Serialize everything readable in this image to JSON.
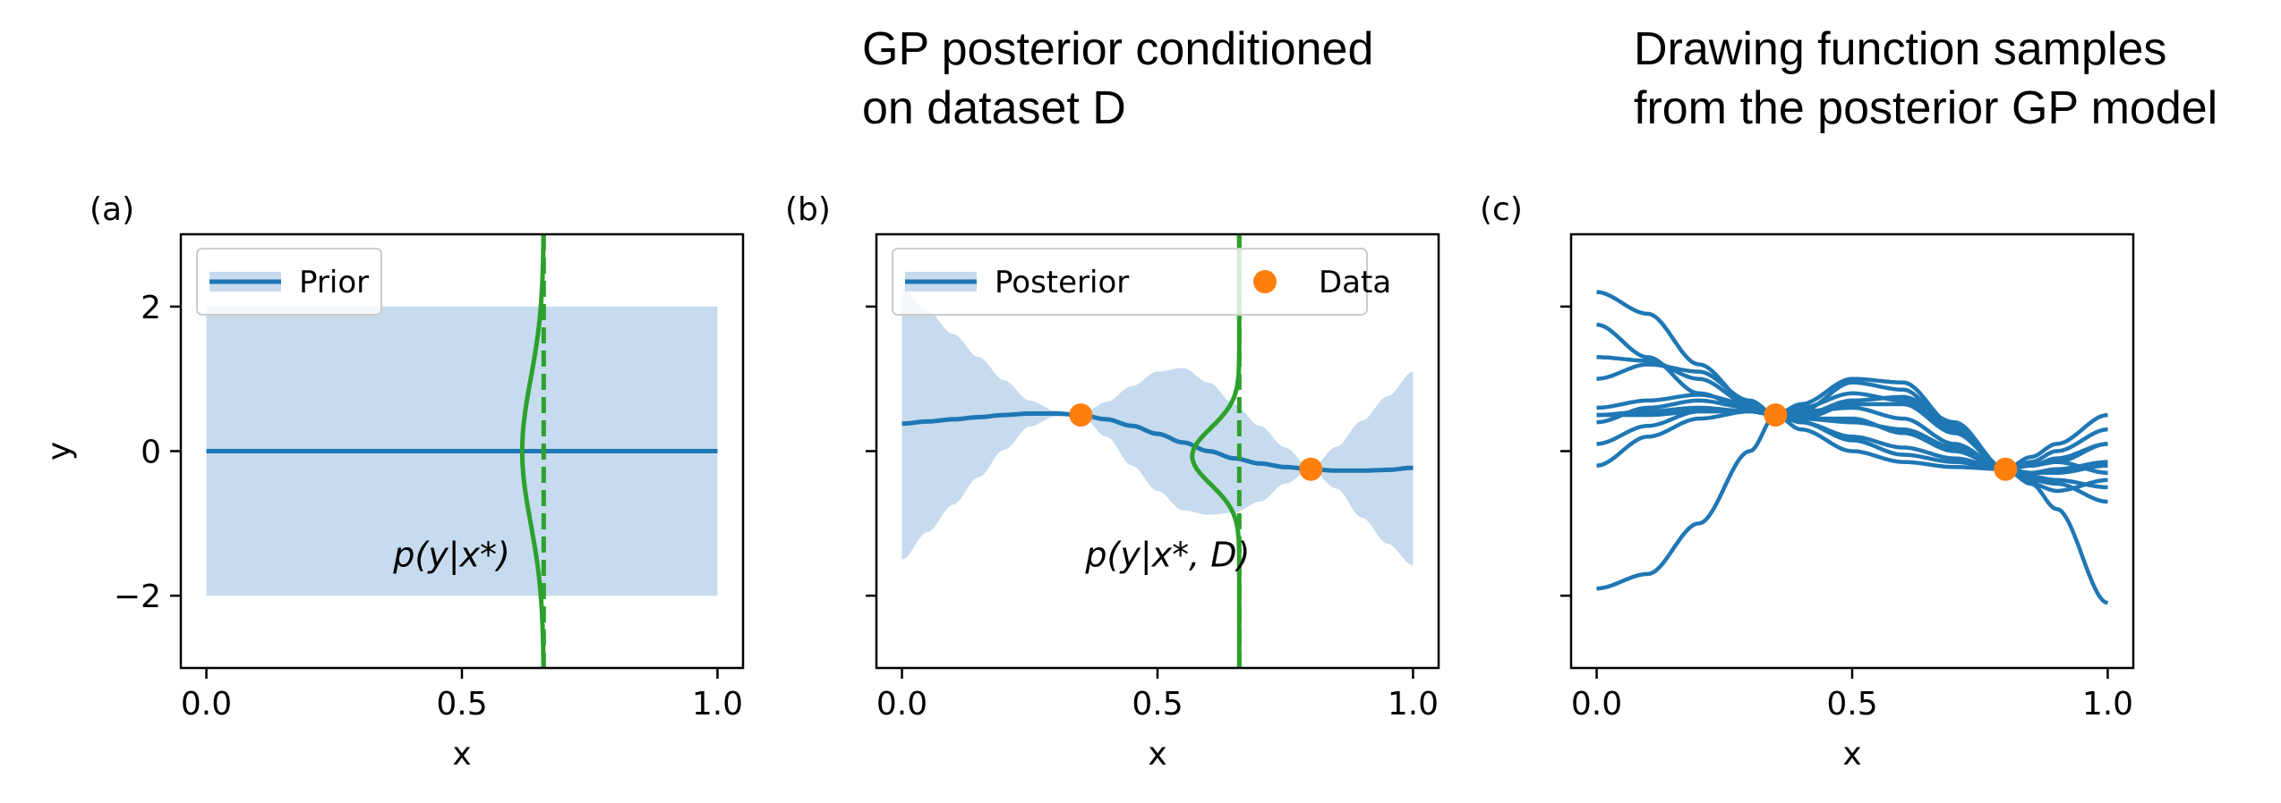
{
  "headings": {
    "panel_b": "GP posterior conditioned\non dataset D",
    "panel_c": "Drawing function samples\nfrom the posterior GP model"
  },
  "colors": {
    "mean": "#1f77b4",
    "band": "#c6dbed",
    "density": "#2ca02c",
    "data": "#ff7f0e",
    "axis": "#000000"
  },
  "chart_data": [
    {
      "type": "line",
      "panel_label": "(a)",
      "xlabel": "x",
      "ylabel": "y",
      "xlim": [
        -0.05,
        1.05
      ],
      "ylim": [
        -3,
        3
      ],
      "xticks": [
        0.0,
        0.5,
        1.0
      ],
      "xtick_labels": [
        "0.0",
        "0.5",
        "1.0"
      ],
      "yticks": [
        -2,
        0,
        2
      ],
      "ytick_labels": [
        "−2",
        "0",
        "2"
      ],
      "legend": {
        "placement": "top-left",
        "entries": [
          {
            "label": "Prior",
            "kind": "line"
          }
        ]
      },
      "series": [
        {
          "name": "Prior",
          "x": [
            0,
            1
          ],
          "mean": [
            0,
            0
          ],
          "lower": [
            -2,
            -2
          ],
          "upper": [
            2,
            2
          ]
        }
      ],
      "density": {
        "x_star": 0.66,
        "mu": 0.0,
        "sigma": 1.0,
        "peak_width": 0.042
      },
      "annotation": {
        "text": "p(y|x*)",
        "x": 0.48,
        "y": -1.45
      }
    },
    {
      "type": "line",
      "panel_label": "(b)",
      "xlabel": "x",
      "xlim": [
        -0.05,
        1.05
      ],
      "ylim": [
        -3,
        3
      ],
      "xticks": [
        0.0,
        0.5,
        1.0
      ],
      "xtick_labels": [
        "0.0",
        "0.5",
        "1.0"
      ],
      "yticks": [
        -2,
        0,
        2
      ],
      "legend": {
        "placement": "top",
        "entries": [
          {
            "label": "Posterior",
            "kind": "line"
          },
          {
            "label": "Data",
            "kind": "marker"
          }
        ]
      },
      "series": [
        {
          "name": "Posterior",
          "x": [
            0,
            0.05,
            0.1,
            0.15,
            0.2,
            0.25,
            0.3,
            0.35,
            0.4,
            0.45,
            0.5,
            0.55,
            0.6,
            0.65,
            0.7,
            0.75,
            0.8,
            0.85,
            0.9,
            0.95,
            1.0
          ],
          "mean": [
            0.38,
            0.41,
            0.44,
            0.47,
            0.5,
            0.52,
            0.52,
            0.5,
            0.44,
            0.35,
            0.24,
            0.12,
            0.0,
            -0.1,
            -0.17,
            -0.22,
            -0.25,
            -0.27,
            -0.27,
            -0.26,
            -0.23
          ],
          "lower": [
            -1.5,
            -1.12,
            -0.74,
            -0.36,
            0.02,
            0.34,
            0.48,
            0.5,
            0.2,
            -0.2,
            -0.55,
            -0.82,
            -0.88,
            -0.85,
            -0.7,
            -0.45,
            -0.25,
            -0.52,
            -0.92,
            -1.28,
            -1.58
          ],
          "upper": [
            2.25,
            1.94,
            1.62,
            1.3,
            0.98,
            0.7,
            0.56,
            0.5,
            0.68,
            0.9,
            1.1,
            1.15,
            0.95,
            0.65,
            0.35,
            0.05,
            -0.25,
            0.06,
            0.42,
            0.76,
            1.1
          ]
        }
      ],
      "points": {
        "name": "Data",
        "x": [
          0.35,
          0.8
        ],
        "y": [
          0.5,
          -0.25
        ]
      },
      "density": {
        "x_star": 0.66,
        "mu": -0.07,
        "sigma": 0.39,
        "peak_width": 0.092
      },
      "annotation": {
        "text": "p(y|x*, D)",
        "x": 0.52,
        "y": -1.45
      }
    },
    {
      "type": "line",
      "panel_label": "(c)",
      "xlabel": "x",
      "xlim": [
        -0.05,
        1.05
      ],
      "ylim": [
        -3,
        3
      ],
      "xticks": [
        0.0,
        0.5,
        1.0
      ],
      "xtick_labels": [
        "0.0",
        "0.5",
        "1.0"
      ],
      "yticks": [
        -2,
        0,
        2
      ],
      "x": [
        0,
        0.1,
        0.2,
        0.3,
        0.35,
        0.4,
        0.5,
        0.6,
        0.7,
        0.8,
        0.85,
        0.9,
        1.0
      ],
      "series": [
        {
          "values": [
            2.2,
            1.9,
            1.2,
            0.65,
            0.5,
            0.3,
            0.0,
            -0.15,
            -0.22,
            -0.25,
            -0.08,
            0.1,
            0.5
          ]
        },
        {
          "values": [
            1.75,
            1.3,
            0.8,
            0.58,
            0.5,
            0.45,
            0.45,
            0.25,
            0.0,
            -0.25,
            -0.45,
            -0.8,
            -2.1
          ]
        },
        {
          "values": [
            1.3,
            1.25,
            1.0,
            0.65,
            0.5,
            0.55,
            0.95,
            0.85,
            0.3,
            -0.25,
            -0.4,
            -0.45,
            -0.7
          ]
        },
        {
          "values": [
            1.0,
            1.2,
            1.1,
            0.7,
            0.5,
            0.65,
            1.0,
            0.95,
            0.35,
            -0.25,
            -0.35,
            -0.4,
            -0.5
          ]
        },
        {
          "values": [
            0.6,
            0.7,
            0.78,
            0.65,
            0.5,
            0.45,
            0.65,
            0.65,
            0.25,
            -0.25,
            -0.15,
            0.0,
            0.3
          ]
        },
        {
          "values": [
            0.5,
            0.55,
            0.6,
            0.55,
            0.5,
            0.4,
            0.2,
            0.05,
            -0.1,
            -0.25,
            -0.3,
            -0.3,
            -0.2
          ]
        },
        {
          "values": [
            0.5,
            0.5,
            0.55,
            0.55,
            0.5,
            0.45,
            0.4,
            0.3,
            0.05,
            -0.25,
            -0.2,
            -0.1,
            0.1
          ]
        },
        {
          "values": [
            0.4,
            0.6,
            0.7,
            0.6,
            0.5,
            0.4,
            0.15,
            -0.05,
            -0.15,
            -0.25,
            -0.45,
            -0.55,
            -0.4
          ]
        },
        {
          "values": [
            0.1,
            0.35,
            0.55,
            0.55,
            0.5,
            0.55,
            0.6,
            0.45,
            0.1,
            -0.25,
            -0.2,
            -0.15,
            -0.3
          ]
        },
        {
          "values": [
            -0.2,
            0.2,
            0.45,
            0.55,
            0.5,
            0.5,
            0.7,
            0.75,
            0.4,
            -0.25,
            -0.2,
            -0.15,
            0.1
          ]
        },
        {
          "values": [
            -1.9,
            -1.7,
            -1.0,
            0.0,
            0.5,
            0.6,
            0.8,
            0.7,
            0.3,
            -0.25,
            -0.3,
            -0.25,
            -0.15
          ]
        }
      ],
      "points": {
        "x": [
          0.35,
          0.8
        ],
        "y": [
          0.5,
          -0.25
        ]
      }
    }
  ]
}
